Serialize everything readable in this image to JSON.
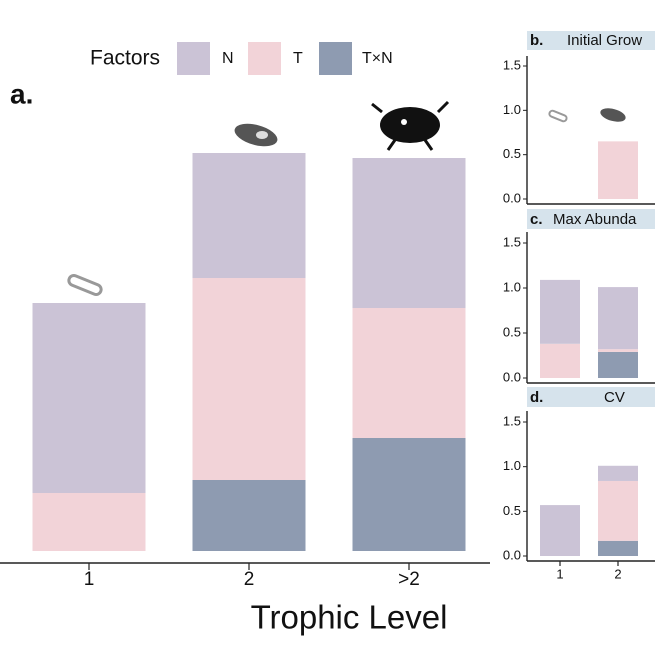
{
  "chart_data": [
    {
      "type": "bar",
      "stacked": true,
      "label": "a.",
      "xlabel": "Trophic Level",
      "legend_title": "Factors",
      "categories": [
        "1",
        "2",
        ">2"
      ],
      "series": [
        {
          "name": "T×N",
          "color": "#8e9bb1",
          "values": [
            0,
            0.1775,
            0.2825
          ]
        },
        {
          "name": "T",
          "color": "#f2d3d8",
          "values": [
            0.145,
            0.505,
            0.325
          ]
        },
        {
          "name": "N",
          "color": "#cbc3d6",
          "values": [
            0.475,
            0.3125,
            0.375
          ]
        }
      ],
      "ylim": [
        0,
        1.0
      ]
    },
    {
      "type": "bar",
      "stacked": true,
      "label": "b.",
      "title": "Initial Grow",
      "categories": [
        null,
        null
      ],
      "series": [
        {
          "color": "#8e9bb1",
          "values": [
            0,
            0
          ]
        },
        {
          "color": "#f2d3d8",
          "values": [
            0,
            0.65
          ]
        },
        {
          "color": "#cbc3d6",
          "values": [
            0,
            0
          ]
        }
      ],
      "ylim": [
        0,
        1.5
      ],
      "yticks": [
        {
          "value": 0,
          "label": "0.0"
        },
        0.5,
        {
          "value": 1,
          "label": "1.0"
        },
        1.5
      ]
    },
    {
      "type": "bar",
      "stacked": true,
      "label": "c.",
      "title": "Max Abunda",
      "categories": [
        null,
        null
      ],
      "series": [
        {
          "color": "#8e9bb1",
          "values": [
            0,
            0.29
          ]
        },
        {
          "color": "#f2d3d8",
          "values": [
            0.38,
            0.03
          ]
        },
        {
          "color": "#cbc3d6",
          "values": [
            0.71,
            0.69
          ]
        }
      ],
      "ylim": [
        0,
        1.5
      ],
      "yticks": [
        {
          "value": 0,
          "label": "0.0"
        },
        0.5,
        {
          "value": 1,
          "label": "1.0"
        },
        1.5
      ]
    },
    {
      "type": "bar",
      "stacked": true,
      "label": "d.",
      "title": "CV",
      "categories": [
        "1",
        "2"
      ],
      "series": [
        {
          "color": "#8e9bb1",
          "values": [
            0,
            0.17
          ]
        },
        {
          "color": "#f2d3d8",
          "values": [
            0,
            0.67
          ]
        },
        {
          "color": "#cbc3d6",
          "values": [
            0.57,
            0.17
          ]
        }
      ],
      "ylim": [
        0,
        1.5
      ],
      "yticks": [
        {
          "value": 0,
          "label": "0.0"
        },
        0.5,
        {
          "value": 1,
          "label": "1.0"
        },
        1.5
      ]
    }
  ]
}
